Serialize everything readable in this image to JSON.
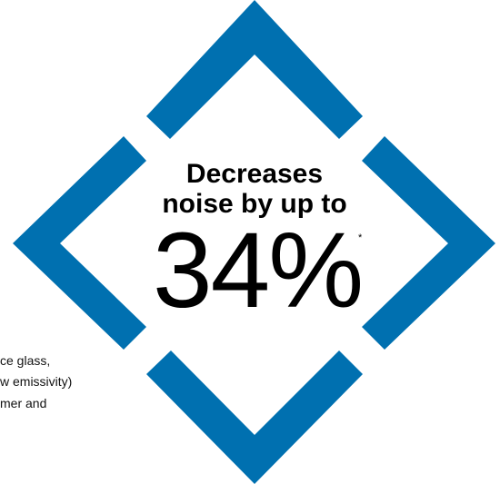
{
  "badge": {
    "headline_line1": "Decreases",
    "headline_line2": "noise by up to",
    "value": "34%",
    "footnote_mark": "*",
    "frame_color": "#0070B0",
    "frame_shape": "diamond outline made of four corner chevrons"
  },
  "side_text": {
    "line1": "ce glass,",
    "line2": "w emissivity)",
    "line3": "mer and"
  }
}
